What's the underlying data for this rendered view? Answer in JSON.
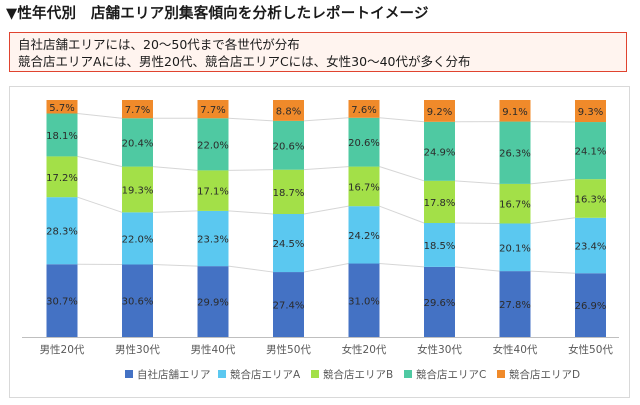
{
  "heading": "▼性年代別　店舗エリア別集客傾向を分析したレポートイメージ",
  "callout": {
    "line1": "自社店舗エリアには、20～50代まで各世代が分布",
    "line2": "競合店エリアAには、男性20代、競合店エリアCには、女性30～40代が多く分布"
  },
  "chart_data": {
    "type": "bar",
    "stacked": true,
    "percent_stacked": true,
    "categories": [
      "男性20代",
      "男性30代",
      "男性40代",
      "男性50代",
      "女性20代",
      "女性30代",
      "女性40代",
      "女性50代"
    ],
    "series": [
      {
        "name": "自社店舗エリア",
        "color": "#4472c4",
        "values": [
          30.7,
          30.6,
          29.9,
          27.4,
          31.0,
          29.6,
          27.8,
          26.9
        ],
        "labels": [
          "30.7%",
          "30.6%",
          "29.9%",
          "27.4%",
          "31.0%",
          "29.6%",
          "27.8%",
          "26.9%"
        ]
      },
      {
        "name": "競合店エリアA",
        "color": "#5bc8f0",
        "values": [
          28.3,
          22.0,
          23.3,
          24.5,
          24.2,
          18.5,
          20.1,
          23.4
        ],
        "labels": [
          "28.3%",
          "22.0%",
          "23.3%",
          "24.5%",
          "24.2%",
          "18.5%",
          "20.1%",
          "23.4%"
        ]
      },
      {
        "name": "競合店エリアB",
        "color": "#a3e048",
        "values": [
          17.2,
          19.3,
          17.1,
          18.7,
          16.7,
          17.8,
          16.7,
          16.3
        ],
        "labels": [
          "17.2%",
          "19.3%",
          "17.1%",
          "18.7%",
          "16.7%",
          "17.8%",
          "16.7%",
          "16.3%"
        ]
      },
      {
        "name": "競合店エリアC",
        "color": "#4fc9a2",
        "values": [
          18.1,
          20.4,
          22.0,
          20.6,
          20.6,
          24.9,
          26.3,
          24.1
        ],
        "labels": [
          "18.1%",
          "20.4%",
          "22.0%",
          "20.6%",
          "20.6%",
          "24.9%",
          "26.3%",
          "24.1%"
        ]
      },
      {
        "name": "競合店エリアD",
        "color": "#f08a2a",
        "values": [
          5.7,
          7.7,
          7.7,
          8.8,
          7.6,
          9.2,
          9.1,
          9.3
        ],
        "labels": [
          "5.7%",
          "7.7%",
          "7.7%",
          "8.8%",
          "7.6%",
          "9.2%",
          "9.1%",
          "9.3%"
        ]
      }
    ],
    "ylim": [
      0,
      100
    ],
    "series_lines": true,
    "legend": "bottom",
    "title": "",
    "xlabel": "",
    "ylabel": ""
  }
}
